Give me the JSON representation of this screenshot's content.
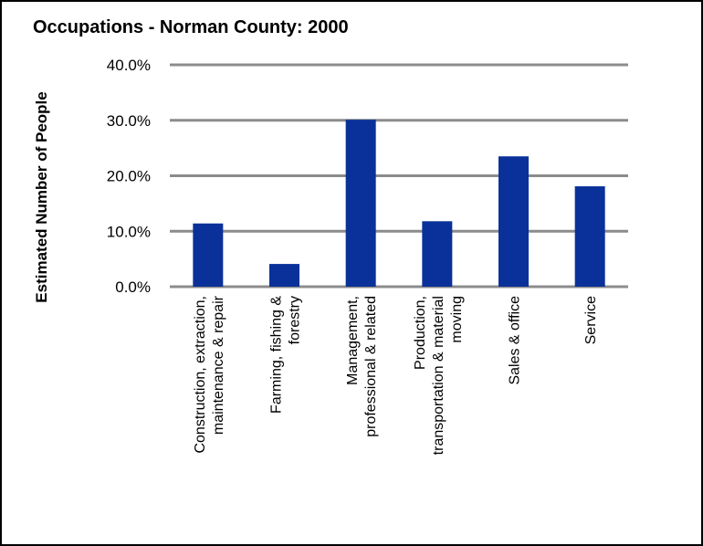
{
  "chart_data": {
    "type": "bar",
    "title": "Occupations - Norman County: 2000",
    "xlabel": "",
    "ylabel": "Estimated Number of People",
    "ylim": [
      0,
      40
    ],
    "yticks": [
      "0.0%",
      "10.0%",
      "20.0%",
      "30.0%",
      "40.0%"
    ],
    "grid": true,
    "categories": [
      [
        "Construction, extraction,",
        "maintenance & repair"
      ],
      [
        "Farming, fishing &",
        "forestry"
      ],
      [
        "Management,",
        "professional & related"
      ],
      [
        "Production,",
        "transportation & material",
        "moving"
      ],
      [
        "Sales & office"
      ],
      [
        "Service"
      ]
    ],
    "values": [
      11.4,
      4.1,
      30.1,
      11.8,
      23.5,
      18.1
    ],
    "colors": {
      "bar": "#0a3199",
      "grid": "#8c8c8c",
      "axis": "#8c8c8c"
    }
  }
}
